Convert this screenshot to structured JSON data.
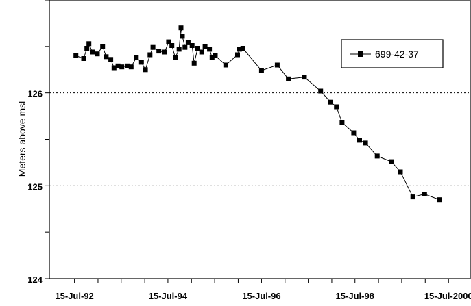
{
  "chart_data": {
    "type": "line",
    "title": "",
    "xlabel": "",
    "ylabel": "Meters above msl",
    "ylim": [
      124,
      127
    ],
    "xlim": [
      "1992-01-01",
      "2001-01-01"
    ],
    "x_tick_labels": [
      "15-Jul-92",
      "15-Jul-94",
      "15-Jul-96",
      "15-Jul-98",
      "15-Jul-2000"
    ],
    "y_tick_labels": [
      "124",
      "125",
      "126"
    ],
    "y_ticks": [
      124,
      125,
      126
    ],
    "grid": "horizontal dotted at 125 and 126",
    "legend_position": "top-right",
    "series": [
      {
        "name": "699-42-37",
        "color": "#000000",
        "marker": "square",
        "x": [
          "1992-07-26",
          "1992-09-25",
          "1992-10-20",
          "1992-11-05",
          "1992-12-01",
          "1993-01-10",
          "1993-02-20",
          "1993-03-20",
          "1993-04-25",
          "1993-05-20",
          "1993-06-20",
          "1993-07-20",
          "1993-09-01",
          "1993-10-01",
          "1993-11-10",
          "1993-12-20",
          "1994-01-20",
          "1994-02-25",
          "1994-03-20",
          "1994-05-05",
          "1994-06-20",
          "1994-07-20",
          "1994-08-15",
          "1994-09-10",
          "1994-10-10",
          "1994-10-25",
          "1994-11-05",
          "1994-11-25",
          "1994-12-20",
          "1995-01-20",
          "1995-02-05",
          "1995-03-05",
          "1995-04-05",
          "1995-05-01",
          "1995-06-05",
          "1995-06-25",
          "1995-07-20",
          "1995-10-10",
          "1996-01-10",
          "1996-01-25",
          "1996-02-20",
          "1996-07-15",
          "1996-11-15",
          "1997-02-10",
          "1997-06-15",
          "1997-10-20",
          "1998-01-05",
          "1998-02-20",
          "1998-04-05",
          "1998-07-05",
          "1998-08-20",
          "1998-10-05",
          "1999-01-05",
          "1999-04-25",
          "1999-07-05",
          "1999-10-10",
          "2000-01-10",
          "2000-05-05"
        ],
        "values": [
          126.4,
          126.37,
          126.48,
          126.53,
          126.44,
          126.42,
          126.5,
          126.39,
          126.36,
          126.27,
          126.29,
          126.28,
          126.29,
          126.28,
          126.38,
          126.33,
          126.25,
          126.41,
          126.49,
          126.45,
          126.44,
          126.55,
          126.51,
          126.38,
          126.47,
          126.7,
          126.61,
          126.49,
          126.54,
          126.51,
          126.32,
          126.48,
          126.44,
          126.5,
          126.47,
          126.38,
          126.4,
          126.3,
          126.41,
          126.47,
          126.48,
          126.24,
          126.3,
          126.15,
          126.17,
          126.02,
          125.9,
          125.85,
          125.68,
          125.57,
          125.49,
          125.46,
          125.32,
          125.26,
          125.15,
          124.88,
          124.91,
          124.85
        ]
      }
    ]
  }
}
